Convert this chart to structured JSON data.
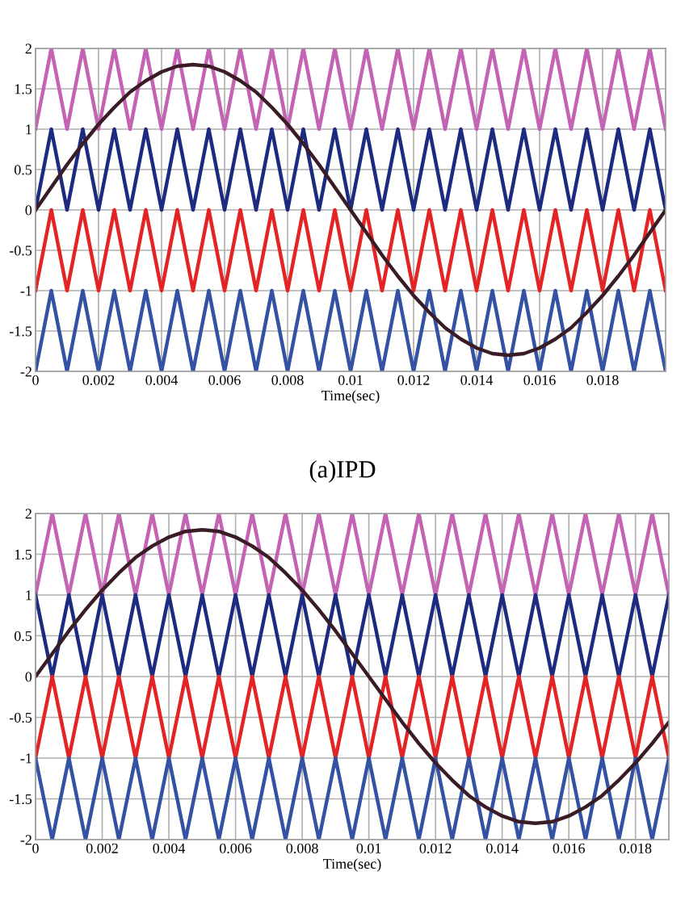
{
  "chart_data": [
    {
      "type": "line",
      "xlabel": "Time(sec)",
      "annotations": [
        "(a)IPD"
      ],
      "x": [
        0,
        0.0005,
        0.001,
        0.0015,
        0.002,
        0.0025,
        0.003,
        0.0035,
        0.004,
        0.0045,
        0.005,
        0.0055,
        0.006,
        0.0065,
        0.007,
        0.0075,
        0.008,
        0.0085,
        0.009,
        0.0095,
        0.01,
        0.0105,
        0.011,
        0.0115,
        0.012,
        0.0125,
        0.013,
        0.0135,
        0.014,
        0.0145,
        0.015,
        0.0155,
        0.016,
        0.0165,
        0.017,
        0.0175,
        0.018,
        0.0185,
        0.019,
        0.0195,
        0.02
      ],
      "series": [
        {
          "color": "#c462b4",
          "values": [
            1,
            2,
            1,
            2,
            1,
            2,
            1,
            2,
            1,
            2,
            1,
            2,
            1,
            2,
            1,
            2,
            1,
            2,
            1,
            2,
            1,
            2,
            1,
            2,
            1,
            2,
            1,
            2,
            1,
            2,
            1,
            2,
            1,
            2,
            1,
            2,
            1,
            2,
            1,
            2,
            1
          ]
        },
        {
          "color": "#1c2a80",
          "values": [
            0,
            1,
            0,
            1,
            0,
            1,
            0,
            1,
            0,
            1,
            0,
            1,
            0,
            1,
            0,
            1,
            0,
            1,
            0,
            1,
            0,
            1,
            0,
            1,
            0,
            1,
            0,
            1,
            0,
            1,
            0,
            1,
            0,
            1,
            0,
            1,
            0,
            1,
            0,
            1,
            0
          ]
        },
        {
          "color": "#e42424",
          "values": [
            -1,
            0,
            -1,
            0,
            -1,
            0,
            -1,
            0,
            -1,
            0,
            -1,
            0,
            -1,
            0,
            -1,
            0,
            -1,
            0,
            -1,
            0,
            -1,
            0,
            -1,
            0,
            -1,
            0,
            -1,
            0,
            -1,
            0,
            -1,
            0,
            -1,
            0,
            -1,
            0,
            -1,
            0,
            -1,
            0,
            -1
          ]
        },
        {
          "color": "#3452a4",
          "values": [
            -2,
            -1,
            -2,
            -1,
            -2,
            -1,
            -2,
            -1,
            -2,
            -1,
            -2,
            -1,
            -2,
            -1,
            -2,
            -1,
            -2,
            -1,
            -2,
            -1,
            -2,
            -1,
            -2,
            -1,
            -2,
            -1,
            -2,
            -1,
            -2,
            -1,
            -2,
            -1,
            -2,
            -1,
            -2,
            -1,
            -2,
            -1,
            -2,
            -1,
            -2
          ]
        },
        {
          "color": "#3a1c26",
          "values": [
            0,
            0.28,
            0.56,
            0.82,
            1.06,
            1.27,
            1.46,
            1.6,
            1.71,
            1.78,
            1.8,
            1.78,
            1.71,
            1.6,
            1.46,
            1.27,
            1.06,
            0.82,
            0.56,
            0.28,
            0,
            -0.28,
            -0.56,
            -0.82,
            -1.06,
            -1.27,
            -1.46,
            -1.6,
            -1.71,
            -1.78,
            -1.8,
            -1.78,
            -1.71,
            -1.6,
            -1.46,
            -1.27,
            -1.06,
            -0.82,
            -0.56,
            -0.28,
            0
          ]
        }
      ],
      "xlim": [
        0,
        0.02
      ],
      "ylim": [
        -2,
        2
      ],
      "xticks": [
        0,
        0.002,
        0.004,
        0.006,
        0.008,
        0.01,
        0.012,
        0.014,
        0.016,
        0.018
      ],
      "yticks": [
        -2,
        -1.5,
        -1,
        -0.5,
        0,
        0.5,
        1,
        1.5,
        2
      ],
      "grid": true,
      "marker": "none",
      "line_style": "solid"
    },
    {
      "type": "line",
      "xlabel": "Time(sec)",
      "x": [
        0,
        0.0005,
        0.001,
        0.0015,
        0.002,
        0.0025,
        0.003,
        0.0035,
        0.004,
        0.0045,
        0.005,
        0.0055,
        0.006,
        0.0065,
        0.007,
        0.0075,
        0.008,
        0.0085,
        0.009,
        0.0095,
        0.01,
        0.0105,
        0.011,
        0.0115,
        0.012,
        0.0125,
        0.013,
        0.0135,
        0.014,
        0.0145,
        0.015,
        0.0155,
        0.016,
        0.0165,
        0.017,
        0.0175,
        0.018,
        0.0185,
        0.019
      ],
      "series": [
        {
          "color": "#c462b4",
          "values": [
            1,
            2,
            1,
            2,
            1,
            2,
            1,
            2,
            1,
            2,
            1,
            2,
            1,
            2,
            1,
            2,
            1,
            2,
            1,
            2,
            1,
            2,
            1,
            2,
            1,
            2,
            1,
            2,
            1,
            2,
            1,
            2,
            1,
            2,
            1,
            2,
            1,
            2,
            1
          ]
        },
        {
          "color": "#1c2a80",
          "values": [
            1,
            0,
            1,
            0,
            1,
            0,
            1,
            0,
            1,
            0,
            1,
            0,
            1,
            0,
            1,
            0,
            1,
            0,
            1,
            0,
            1,
            0,
            1,
            0,
            1,
            0,
            1,
            0,
            1,
            0,
            1,
            0,
            1,
            0,
            1,
            0,
            1,
            0,
            1
          ]
        },
        {
          "color": "#e42424",
          "values": [
            -1,
            0,
            -1,
            0,
            -1,
            0,
            -1,
            0,
            -1,
            0,
            -1,
            0,
            -1,
            0,
            -1,
            0,
            -1,
            0,
            -1,
            0,
            -1,
            0,
            -1,
            0,
            -1,
            0,
            -1,
            0,
            -1,
            0,
            -1,
            0,
            -1,
            0,
            -1,
            0,
            -1,
            0,
            -1
          ]
        },
        {
          "color": "#3452a4",
          "values": [
            -1,
            -2,
            -1,
            -2,
            -1,
            -2,
            -1,
            -2,
            -1,
            -2,
            -1,
            -2,
            -1,
            -2,
            -1,
            -2,
            -1,
            -2,
            -1,
            -2,
            -1,
            -2,
            -1,
            -2,
            -1,
            -2,
            -1,
            -2,
            -1,
            -2,
            -1,
            -2,
            -1,
            -2,
            -1,
            -2,
            -1,
            -2,
            -1
          ]
        },
        {
          "color": "#3a1c26",
          "values": [
            0,
            0.28,
            0.56,
            0.82,
            1.06,
            1.27,
            1.46,
            1.6,
            1.71,
            1.78,
            1.8,
            1.78,
            1.71,
            1.6,
            1.46,
            1.27,
            1.06,
            0.82,
            0.56,
            0.28,
            0,
            -0.28,
            -0.56,
            -0.82,
            -1.06,
            -1.27,
            -1.46,
            -1.6,
            -1.71,
            -1.78,
            -1.8,
            -1.78,
            -1.71,
            -1.6,
            -1.46,
            -1.27,
            -1.06,
            -0.82,
            -0.56
          ]
        }
      ],
      "xlim": [
        0,
        0.019
      ],
      "ylim": [
        -2,
        2
      ],
      "xticks": [
        0,
        0.002,
        0.004,
        0.006,
        0.008,
        0.01,
        0.012,
        0.014,
        0.016,
        0.018
      ],
      "yticks": [
        -2,
        -1.5,
        -1,
        -0.5,
        0,
        0.5,
        1,
        1.5,
        2
      ],
      "grid": true,
      "marker": "none",
      "line_style": "solid"
    }
  ]
}
